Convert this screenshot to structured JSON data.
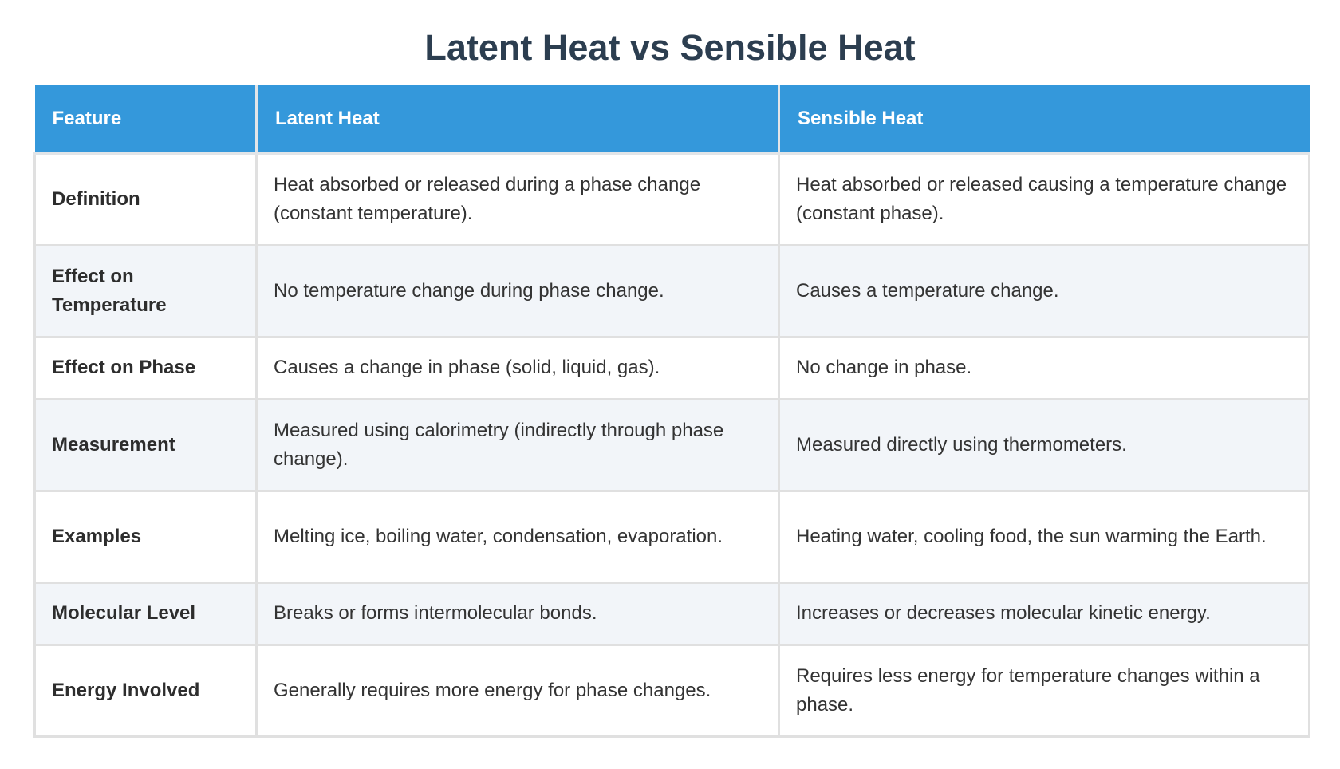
{
  "title": "Latent Heat vs Sensible Heat",
  "table": {
    "headers": [
      "Feature",
      "Latent Heat",
      "Sensible Heat"
    ],
    "rows": [
      {
        "feature": "Definition",
        "latent": "Heat absorbed or released during a phase change (constant temperature).",
        "sensible": "Heat absorbed or released causing a temperature change (constant phase)."
      },
      {
        "feature": "Effect on Temperature",
        "latent": "No temperature change during phase change.",
        "sensible": "Causes a temperature change."
      },
      {
        "feature": "Effect on Phase",
        "latent": "Causes a change in phase (solid, liquid, gas).",
        "sensible": "No change in phase."
      },
      {
        "feature": "Measurement",
        "latent": "Measured using calorimetry (indirectly through phase change).",
        "sensible": "Measured directly using thermometers."
      },
      {
        "feature": "Examples",
        "latent": "Melting ice, boiling water, condensation, evaporation.",
        "sensible": "Heating water, cooling food, the sun warming the Earth."
      },
      {
        "feature": "Molecular Level",
        "latent": "Breaks or forms intermolecular bonds.",
        "sensible": "Increases or decreases molecular kinetic energy."
      },
      {
        "feature": "Energy Involved",
        "latent": "Generally requires more energy for phase changes.",
        "sensible": "Requires less energy for temperature changes within a phase."
      }
    ]
  },
  "colors": {
    "header_bg": "#3498db",
    "header_text": "#ffffff",
    "title_text": "#2c3e50",
    "row_alt_bg": "#f2f5f9",
    "border": "#e0e0e0"
  }
}
